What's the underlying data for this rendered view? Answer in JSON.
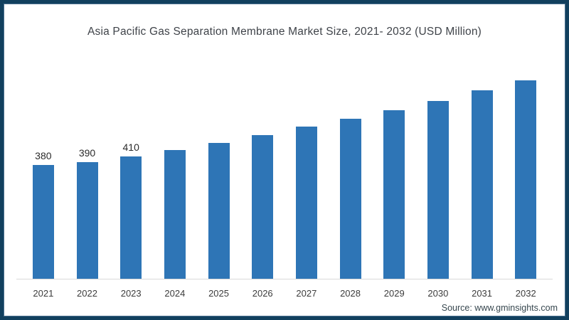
{
  "title": "Asia Pacific Gas Separation Membrane Market Size, 2021- 2032 (USD Million)",
  "source": "Source: www.gminsights.com",
  "colors": {
    "frame_border": "#12405e",
    "bar": "#2e75b6",
    "title_text": "#3f4349",
    "axis_line": "#d9d9d9"
  },
  "chart_data": {
    "type": "bar",
    "title": "Asia Pacific Gas Separation Membrane Market Size, 2021- 2032 (USD Million)",
    "categories": [
      "2021",
      "2022",
      "2023",
      "2024",
      "2025",
      "2026",
      "2027",
      "2028",
      "2029",
      "2030",
      "2031",
      "2032"
    ],
    "values": [
      380,
      390,
      410,
      430,
      455,
      480,
      510,
      535,
      565,
      595,
      630,
      665
    ],
    "data_labels": [
      "380",
      "390",
      "410",
      "",
      "",
      "",
      "",
      "",
      "",
      "",
      "",
      ""
    ],
    "xlabel": "",
    "ylabel": "",
    "ylim": [
      0,
      700
    ],
    "grid": false,
    "legend": false,
    "bar_color": "#2e75b6",
    "y_axis_visible": false,
    "x_axis_visible": true
  }
}
